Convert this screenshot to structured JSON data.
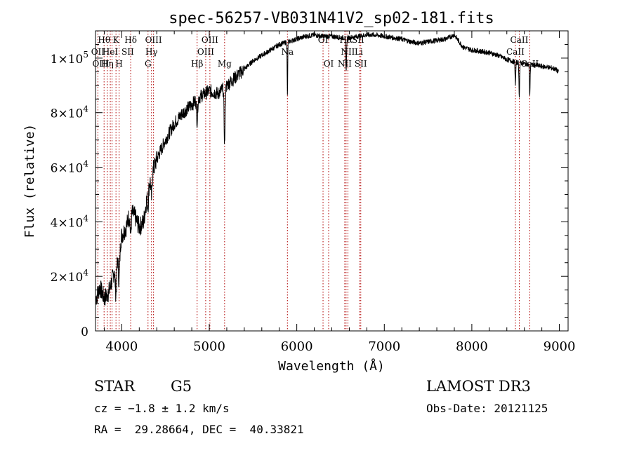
{
  "chart_data": {
    "type": "line",
    "title": "spec-56257-VB031N41V2_sp02-181.fits",
    "xlabel": "Wavelength (Å)",
    "ylabel": "Flux (relative)",
    "xlim": [
      3700,
      9100
    ],
    "ylim": [
      0,
      110000
    ],
    "x_ticks": [
      {
        "value": 4000,
        "label": "4000"
      },
      {
        "value": 5000,
        "label": "5000"
      },
      {
        "value": 6000,
        "label": "6000"
      },
      {
        "value": 7000,
        "label": "7000"
      },
      {
        "value": 8000,
        "label": "8000"
      },
      {
        "value": 9000,
        "label": "9000"
      }
    ],
    "y_ticks": [
      {
        "value": 0,
        "mant": "0",
        "exp": ""
      },
      {
        "value": 20000,
        "mant": "2×10",
        "exp": "4"
      },
      {
        "value": 40000,
        "mant": "4×10",
        "exp": "4"
      },
      {
        "value": 60000,
        "mant": "6×10",
        "exp": "4"
      },
      {
        "value": 80000,
        "mant": "8×10",
        "exp": "4"
      },
      {
        "value": 100000,
        "mant": "1×10",
        "exp": "5"
      }
    ],
    "spectrum_anchors": [
      [
        3705,
        12000
      ],
      [
        3750,
        16000
      ],
      [
        3800,
        12000
      ],
      [
        3850,
        14000
      ],
      [
        3900,
        20000
      ],
      [
        3950,
        28000
      ],
      [
        4000,
        35000
      ],
      [
        4050,
        38000
      ],
      [
        4100,
        44000
      ],
      [
        4150,
        42000
      ],
      [
        4200,
        38000
      ],
      [
        4250,
        40000
      ],
      [
        4300,
        52000
      ],
      [
        4350,
        58000
      ],
      [
        4400,
        63000
      ],
      [
        4500,
        70000
      ],
      [
        4600,
        76000
      ],
      [
        4700,
        80000
      ],
      [
        4800,
        83000
      ],
      [
        4900,
        86000
      ],
      [
        5000,
        88000
      ],
      [
        5100,
        87000
      ],
      [
        5200,
        90000
      ],
      [
        5300,
        93000
      ],
      [
        5400,
        96000
      ],
      [
        5500,
        99000
      ],
      [
        5600,
        101000
      ],
      [
        5700,
        103000
      ],
      [
        5800,
        105000
      ],
      [
        5900,
        106000
      ],
      [
        6000,
        107000
      ],
      [
        6100,
        108000
      ],
      [
        6200,
        108500
      ],
      [
        6300,
        108000
      ],
      [
        6400,
        108000
      ],
      [
        6500,
        107500
      ],
      [
        6600,
        107500
      ],
      [
        6700,
        108000
      ],
      [
        6800,
        108500
      ],
      [
        6900,
        108500
      ],
      [
        7000,
        108000
      ],
      [
        7100,
        107500
      ],
      [
        7200,
        107000
      ],
      [
        7300,
        106000
      ],
      [
        7400,
        105500
      ],
      [
        7500,
        106000
      ],
      [
        7600,
        106500
      ],
      [
        7700,
        107000
      ],
      [
        7800,
        108500
      ],
      [
        7900,
        104000
      ],
      [
        8000,
        103000
      ],
      [
        8100,
        102500
      ],
      [
        8200,
        102000
      ],
      [
        8300,
        101000
      ],
      [
        8400,
        99500
      ],
      [
        8500,
        98500
      ],
      [
        8600,
        98000
      ],
      [
        8700,
        97500
      ],
      [
        8800,
        97000
      ],
      [
        8900,
        96500
      ],
      [
        8950,
        96000
      ],
      [
        8990,
        95000
      ]
    ],
    "absorption_dips": [
      {
        "center": 3934,
        "depth": 12000,
        "width": 8
      },
      {
        "center": 3969,
        "depth": 12000,
        "width": 8
      },
      {
        "center": 4102,
        "depth": 9000,
        "width": 6
      },
      {
        "center": 4300,
        "depth": 6000,
        "width": 6
      },
      {
        "center": 4340,
        "depth": 8000,
        "width": 6
      },
      {
        "center": 4861,
        "depth": 8000,
        "width": 6
      },
      {
        "center": 5175,
        "depth": 20000,
        "width": 6
      },
      {
        "center": 5893,
        "depth": 20000,
        "width": 3
      },
      {
        "center": 6563,
        "depth": 12000,
        "width": 5
      },
      {
        "center": 8498,
        "depth": 8000,
        "width": 4
      },
      {
        "center": 8542,
        "depth": 12000,
        "width": 4
      },
      {
        "center": 8662,
        "depth": 11000,
        "width": 4
      }
    ],
    "line_markers": [
      3727,
      3798,
      3835,
      3869,
      3889,
      3934,
      3970,
      4102,
      4300,
      4340,
      4363,
      4861,
      4959,
      5007,
      5175,
      5893,
      6300,
      6364,
      6548,
      6563,
      6584,
      6717,
      6731,
      8498,
      8542,
      8662
    ],
    "line_labels": [
      {
        "text": "Hθ",
        "x": 3798,
        "row": 1
      },
      {
        "text": "K",
        "x": 3934,
        "row": 1
      },
      {
        "text": "Hδ",
        "x": 4102,
        "row": 1
      },
      {
        "text": "OIII",
        "x": 4363,
        "row": 1
      },
      {
        "text": "OIII",
        "x": 5007,
        "row": 1
      },
      {
        "text": "OI",
        "x": 6300,
        "row": 1
      },
      {
        "text": "Hα",
        "x": 6563,
        "row": 1
      },
      {
        "text": "SII",
        "x": 6700,
        "row": 1
      },
      {
        "text": "CaII",
        "x": 8542,
        "row": 1
      },
      {
        "text": "OII",
        "x": 3727,
        "row": 2
      },
      {
        "text": "HeI",
        "x": 3869,
        "row": 2
      },
      {
        "text": "SII",
        "x": 4068,
        "row": 2
      },
      {
        "text": "Hγ",
        "x": 4340,
        "row": 2
      },
      {
        "text": "OIII",
        "x": 4959,
        "row": 2
      },
      {
        "text": "Na",
        "x": 5893,
        "row": 2
      },
      {
        "text": "NII",
        "x": 6584,
        "row": 2
      },
      {
        "text": "Li",
        "x": 6708,
        "row": 2
      },
      {
        "text": "CaII",
        "x": 8498,
        "row": 2
      },
      {
        "text": "OIII",
        "x": 3760,
        "row": 3
      },
      {
        "text": "Hη",
        "x": 3835,
        "row": 3
      },
      {
        "text": "H",
        "x": 3970,
        "row": 3
      },
      {
        "text": "G",
        "x": 4300,
        "row": 3
      },
      {
        "text": "Hβ",
        "x": 4861,
        "row": 3
      },
      {
        "text": "Mg",
        "x": 5175,
        "row": 3
      },
      {
        "text": "OI",
        "x": 6364,
        "row": 3
      },
      {
        "text": "NII",
        "x": 6548,
        "row": 3
      },
      {
        "text": "SII",
        "x": 6731,
        "row": 3
      },
      {
        "text": "CaII",
        "x": 8662,
        "row": 3
      }
    ]
  },
  "footer": {
    "object_class": "STAR",
    "subclass": "G5",
    "survey": "LAMOST DR3",
    "cz": "cz = −1.8 ± 1.2 km/s",
    "obs_date": "Obs-Date: 20121125",
    "coords": "RA =  29.28664, DEC =  40.33821"
  }
}
